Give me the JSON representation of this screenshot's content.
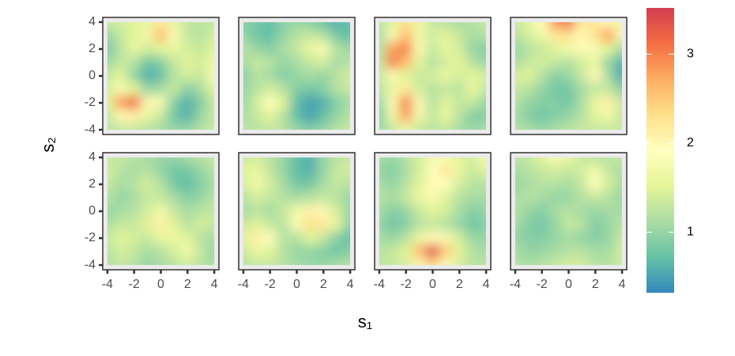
{
  "chart_data": {
    "type": "heatmap",
    "x_label": "s₁",
    "y_label": "s₂",
    "x": [
      -4,
      -3,
      -2,
      -1,
      0,
      1,
      2,
      3,
      4
    ],
    "y": [
      4,
      3,
      2,
      1,
      0,
      -1,
      -2,
      -3,
      -4
    ],
    "xlim": [
      -4.35,
      4.35
    ],
    "ylim": [
      -4.35,
      4.35
    ],
    "xticks": [
      -4,
      -2,
      0,
      2,
      4
    ],
    "yticks": [
      -4,
      -2,
      0,
      2,
      4
    ],
    "zlim": [
      0.32,
      3.52
    ],
    "zticks": [
      1,
      2,
      3
    ],
    "colors": [
      "#3288bd",
      "#66c2a5",
      "#abdda4",
      "#e6f598",
      "#ffffbf",
      "#fee08b",
      "#fdae61",
      "#f46d43",
      "#d53e4f"
    ],
    "panels": [
      {
        "values": [
          [
            1.3,
            1.4,
            1.5,
            1.6,
            2.2,
            1.6,
            1.3,
            1.2,
            1.3
          ],
          [
            1.0,
            1.3,
            1.5,
            1.7,
            2.6,
            1.8,
            1.3,
            1.2,
            1.4
          ],
          [
            0.8,
            1.2,
            1.6,
            1.4,
            1.5,
            1.6,
            1.4,
            1.3,
            1.5
          ],
          [
            1.0,
            1.3,
            1.2,
            0.8,
            0.9,
            1.3,
            1.5,
            1.4,
            1.6
          ],
          [
            1.3,
            1.5,
            1.0,
            0.6,
            0.7,
            1.2,
            1.4,
            1.3,
            1.8
          ],
          [
            1.4,
            1.8,
            1.5,
            1.0,
            1.1,
            1.3,
            0.9,
            1.1,
            1.5
          ],
          [
            1.5,
            2.8,
            3.2,
            2.0,
            1.8,
            0.9,
            0.6,
            0.9,
            1.3
          ],
          [
            1.3,
            2.0,
            2.1,
            1.6,
            1.3,
            0.8,
            0.6,
            1.0,
            1.3
          ],
          [
            1.2,
            1.3,
            1.3,
            1.2,
            1.1,
            1.0,
            1.0,
            1.2,
            1.3
          ]
        ]
      },
      {
        "values": [
          [
            0.9,
            0.8,
            0.7,
            0.9,
            1.0,
            0.9,
            0.7,
            0.6,
            0.7
          ],
          [
            1.0,
            0.8,
            0.7,
            1.0,
            1.2,
            1.3,
            1.2,
            0.8,
            0.7
          ],
          [
            1.2,
            1.0,
            0.9,
            1.1,
            1.3,
            1.6,
            1.8,
            1.2,
            1.0
          ],
          [
            1.1,
            1.3,
            1.2,
            1.0,
            1.1,
            1.3,
            1.4,
            1.1,
            1.2
          ],
          [
            0.9,
            1.2,
            1.1,
            0.9,
            1.0,
            1.1,
            1.0,
            1.2,
            1.4
          ],
          [
            1.0,
            1.2,
            1.4,
            1.2,
            0.9,
            0.8,
            0.9,
            1.2,
            1.3
          ],
          [
            1.0,
            1.4,
            1.9,
            1.5,
            0.7,
            0.5,
            0.6,
            0.9,
            1.1
          ],
          [
            1.1,
            1.3,
            1.5,
            1.2,
            0.7,
            0.5,
            0.7,
            1.0,
            1.2
          ],
          [
            1.2,
            1.2,
            1.3,
            1.2,
            1.0,
            0.9,
            1.0,
            1.2,
            1.3
          ]
        ]
      },
      {
        "values": [
          [
            1.2,
            1.5,
            2.3,
            1.6,
            1.3,
            1.2,
            1.1,
            1.2,
            1.3
          ],
          [
            1.1,
            1.8,
            2.6,
            1.7,
            1.4,
            1.5,
            1.3,
            1.1,
            1.2
          ],
          [
            1.2,
            2.8,
            3.0,
            1.8,
            1.3,
            1.6,
            1.4,
            1.0,
            0.9
          ],
          [
            1.3,
            3.0,
            2.6,
            1.5,
            1.2,
            1.4,
            1.5,
            1.2,
            1.0
          ],
          [
            1.3,
            1.8,
            1.5,
            1.3,
            1.4,
            1.6,
            1.4,
            1.5,
            1.4
          ],
          [
            1.2,
            1.6,
            2.2,
            1.4,
            1.2,
            1.3,
            1.2,
            1.6,
            1.3
          ],
          [
            1.0,
            1.8,
            3.0,
            1.8,
            1.2,
            1.5,
            1.3,
            1.3,
            1.0
          ],
          [
            0.9,
            1.7,
            2.8,
            1.7,
            1.3,
            1.6,
            1.2,
            0.9,
            0.9
          ],
          [
            1.0,
            1.3,
            1.7,
            1.3,
            1.2,
            1.3,
            1.1,
            1.0,
            1.1
          ]
        ]
      },
      {
        "values": [
          [
            1.3,
            1.5,
            1.9,
            2.9,
            3.2,
            2.2,
            2.2,
            2.0,
            1.6
          ],
          [
            1.2,
            1.4,
            1.7,
            2.2,
            2.3,
            2.0,
            2.3,
            2.8,
            1.8
          ],
          [
            1.0,
            1.2,
            1.3,
            1.5,
            1.7,
            2.0,
            1.8,
            1.5,
            1.1
          ],
          [
            1.1,
            1.3,
            1.4,
            1.3,
            1.2,
            1.4,
            1.6,
            1.0,
            0.6
          ],
          [
            1.4,
            1.5,
            1.2,
            0.9,
            1.0,
            1.3,
            2.0,
            1.1,
            0.5
          ],
          [
            1.3,
            1.2,
            1.0,
            0.8,
            0.8,
            1.1,
            1.3,
            1.3,
            0.9
          ],
          [
            1.2,
            1.0,
            0.9,
            0.9,
            0.8,
            1.1,
            1.6,
            2.1,
            1.3
          ],
          [
            1.1,
            0.9,
            0.8,
            0.9,
            1.0,
            1.2,
            1.5,
            1.7,
            1.3
          ],
          [
            1.2,
            1.1,
            1.0,
            1.1,
            1.2,
            1.3,
            1.3,
            1.3,
            1.3
          ]
        ]
      },
      {
        "values": [
          [
            1.3,
            1.3,
            1.2,
            1.1,
            1.0,
            1.0,
            1.1,
            1.2,
            1.3
          ],
          [
            1.4,
            1.2,
            1.1,
            1.2,
            1.0,
            0.8,
            0.8,
            1.0,
            1.2
          ],
          [
            1.3,
            1.1,
            1.2,
            1.4,
            1.2,
            0.8,
            0.7,
            0.9,
            1.1
          ],
          [
            1.2,
            1.0,
            1.1,
            1.3,
            1.3,
            1.1,
            0.9,
            1.0,
            1.2
          ],
          [
            1.0,
            1.1,
            1.2,
            1.4,
            1.7,
            1.3,
            1.1,
            1.2,
            1.3
          ],
          [
            1.1,
            1.3,
            1.3,
            1.5,
            2.1,
            1.5,
            1.2,
            1.4,
            1.3
          ],
          [
            1.3,
            1.5,
            1.4,
            1.3,
            1.6,
            1.6,
            1.5,
            1.2,
            1.1
          ],
          [
            1.2,
            1.4,
            1.3,
            1.1,
            1.2,
            1.4,
            1.7,
            1.3,
            1.0
          ],
          [
            1.1,
            1.3,
            1.2,
            1.0,
            1.1,
            1.2,
            1.4,
            1.2,
            1.1
          ]
        ]
      },
      {
        "values": [
          [
            1.3,
            1.4,
            1.2,
            1.0,
            0.7,
            0.6,
            1.0,
            1.2,
            1.3
          ],
          [
            1.5,
            1.6,
            1.3,
            1.0,
            0.7,
            0.6,
            1.0,
            1.3,
            1.4
          ],
          [
            1.4,
            1.7,
            1.4,
            1.1,
            0.8,
            0.8,
            1.1,
            1.3,
            1.2
          ],
          [
            1.2,
            1.4,
            1.3,
            1.2,
            1.1,
            1.2,
            1.3,
            1.2,
            1.0
          ],
          [
            1.1,
            1.2,
            1.1,
            1.3,
            1.7,
            2.1,
            2.0,
            1.4,
            1.0
          ],
          [
            1.3,
            1.5,
            1.3,
            1.2,
            1.8,
            2.3,
            2.2,
            1.6,
            0.9
          ],
          [
            1.5,
            2.1,
            1.9,
            1.2,
            1.2,
            1.5,
            1.3,
            0.9,
            0.7
          ],
          [
            1.3,
            1.6,
            1.5,
            1.2,
            1.0,
            1.0,
            0.9,
            0.8,
            0.9
          ],
          [
            1.2,
            1.3,
            1.3,
            1.2,
            1.1,
            1.0,
            1.0,
            1.1,
            1.2
          ]
        ]
      },
      {
        "values": [
          [
            1.1,
            1.0,
            1.2,
            1.4,
            1.7,
            1.8,
            1.5,
            1.4,
            1.8
          ],
          [
            1.0,
            0.9,
            1.1,
            1.4,
            1.9,
            2.2,
            1.6,
            1.3,
            1.5
          ],
          [
            1.1,
            1.0,
            1.2,
            1.5,
            2.0,
            1.9,
            1.4,
            1.2,
            1.2
          ],
          [
            1.2,
            1.1,
            1.3,
            1.6,
            1.8,
            1.5,
            1.2,
            1.1,
            1.1
          ],
          [
            1.1,
            0.9,
            1.0,
            1.3,
            1.5,
            1.4,
            1.1,
            0.9,
            1.0
          ],
          [
            1.0,
            0.8,
            0.9,
            1.2,
            1.3,
            1.2,
            1.0,
            0.8,
            0.9
          ],
          [
            1.1,
            1.0,
            1.2,
            1.6,
            2.0,
            1.8,
            1.4,
            1.0,
            1.0
          ],
          [
            1.2,
            1.3,
            1.5,
            2.6,
            3.4,
            2.5,
            1.5,
            1.2,
            1.1
          ],
          [
            1.2,
            1.3,
            1.4,
            2.0,
            2.4,
            1.9,
            1.4,
            1.2,
            1.2
          ]
        ]
      },
      {
        "values": [
          [
            1.2,
            1.3,
            1.5,
            1.8,
            1.6,
            1.3,
            1.2,
            1.2,
            1.3
          ],
          [
            1.1,
            1.2,
            1.3,
            1.4,
            1.3,
            1.4,
            1.7,
            1.3,
            1.1
          ],
          [
            1.0,
            1.1,
            1.2,
            1.2,
            1.1,
            1.3,
            1.9,
            1.4,
            1.1
          ],
          [
            1.1,
            1.2,
            1.1,
            1.0,
            1.0,
            1.2,
            1.3,
            1.2,
            1.0
          ],
          [
            1.2,
            1.0,
            0.9,
            1.1,
            1.2,
            1.1,
            1.0,
            1.1,
            1.1
          ],
          [
            1.1,
            0.9,
            0.8,
            1.0,
            1.3,
            1.2,
            0.9,
            1.0,
            1.2
          ],
          [
            1.0,
            0.9,
            0.9,
            1.0,
            1.1,
            1.0,
            0.9,
            1.0,
            1.3
          ],
          [
            1.1,
            1.0,
            1.0,
            1.1,
            1.2,
            1.2,
            1.1,
            1.1,
            1.4
          ],
          [
            1.2,
            1.1,
            1.2,
            1.3,
            1.4,
            1.4,
            1.2,
            1.2,
            1.3
          ]
        ]
      }
    ]
  }
}
